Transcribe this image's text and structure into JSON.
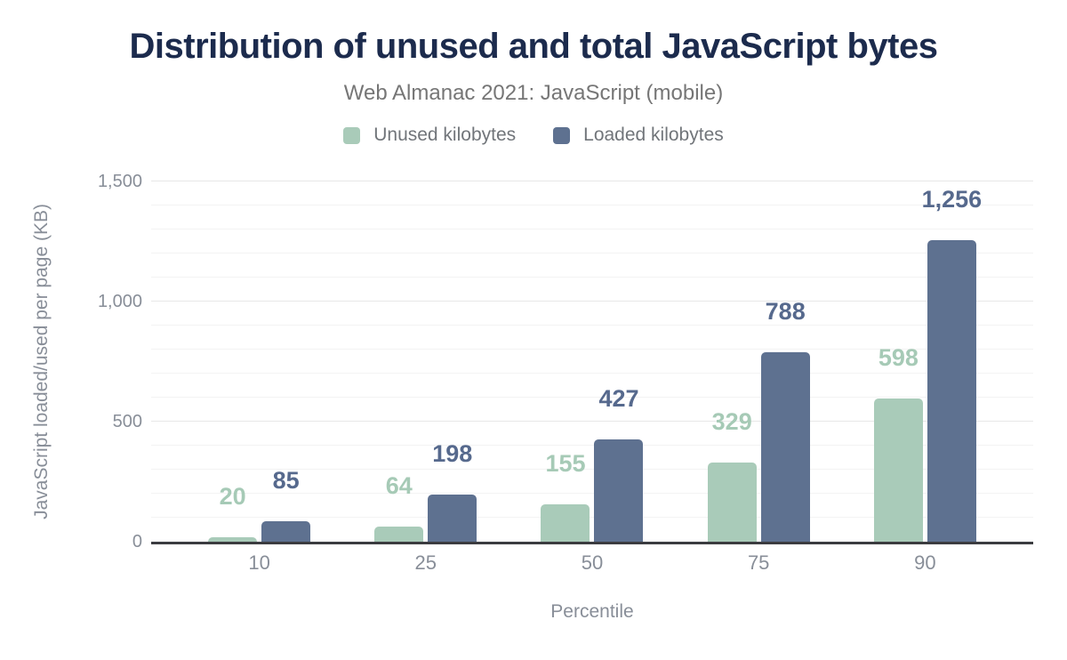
{
  "chart_data": {
    "type": "bar",
    "title": "Distribution of unused and total JavaScript bytes",
    "subtitle": "Web Almanac 2021: JavaScript (mobile)",
    "xlabel": "Percentile",
    "ylabel": "JavaScript loaded/used per page (KB)",
    "categories": [
      "10",
      "25",
      "50",
      "75",
      "90"
    ],
    "series": [
      {
        "name": "Unused kilobytes",
        "color": "#a9cbb9",
        "label_color": "#a6cab6",
        "values": [
          20,
          64,
          155,
          329,
          598
        ],
        "labels": [
          "20",
          "64",
          "155",
          "329",
          "598"
        ]
      },
      {
        "name": "Loaded kilobytes",
        "color": "#5e7190",
        "label_color": "#56698d",
        "values": [
          85,
          198,
          427,
          788,
          1256
        ],
        "labels": [
          "85",
          "198",
          "427",
          "788",
          "1,256"
        ]
      }
    ],
    "ylim": [
      0,
      1500
    ],
    "yticks": [
      {
        "value": 0,
        "label": "0"
      },
      {
        "value": 500,
        "label": "500"
      },
      {
        "value": 1000,
        "label": "1,000"
      },
      {
        "value": 1500,
        "label": "1,500"
      }
    ],
    "grid": {
      "minor_step": 100,
      "major_step": 500,
      "on": true
    },
    "legend_position": "top",
    "colors": {
      "title": "#1c2b4d",
      "subtitle": "#767676",
      "legend_text": "#71757a",
      "axis_text": "#888e98",
      "axis_line": "#3b3c40",
      "grid_minor": "#f3f3f3",
      "grid_major": "#e7e7e7",
      "background": "#ffffff"
    }
  }
}
